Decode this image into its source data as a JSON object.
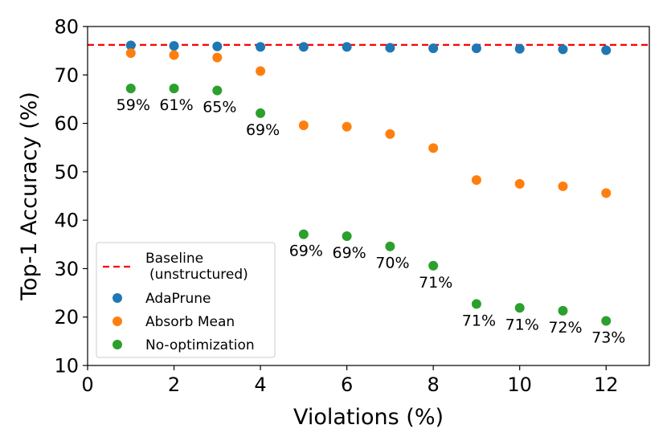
{
  "chart_data": {
    "type": "scatter",
    "xlabel": "Violations (%)",
    "ylabel": "Top-1 Accuracy (%)",
    "xlim": [
      0,
      13
    ],
    "ylim": [
      10,
      80
    ],
    "xticks": [
      0,
      2,
      4,
      6,
      8,
      10,
      12
    ],
    "yticks": [
      10,
      20,
      30,
      40,
      50,
      60,
      70,
      80
    ],
    "baseline": {
      "name_line1": "Baseline",
      "name_line2": "(unstructured)",
      "value": 76.2,
      "color": "#ff0000"
    },
    "legend_position": "lower-left",
    "series": [
      {
        "name": "AdaPrune",
        "color": "#1f77b4",
        "x": [
          1,
          2,
          3,
          4,
          5,
          6,
          7,
          8,
          9,
          10,
          11,
          12
        ],
        "y": [
          76.1,
          76.0,
          75.9,
          75.8,
          75.8,
          75.8,
          75.6,
          75.5,
          75.5,
          75.4,
          75.3,
          75.1
        ]
      },
      {
        "name": "Absorb Mean",
        "color": "#ff7f0e",
        "x": [
          1,
          2,
          3,
          4,
          5,
          6,
          7,
          8,
          9,
          10,
          11,
          12
        ],
        "y": [
          74.5,
          74.1,
          73.6,
          70.8,
          59.6,
          59.3,
          57.8,
          54.9,
          48.3,
          47.5,
          47.0,
          45.6
        ]
      },
      {
        "name": "No-optimization",
        "color": "#2ca02c",
        "x": [
          1,
          2,
          3,
          4,
          5,
          6,
          7,
          8,
          9,
          10,
          11,
          12
        ],
        "y": [
          67.2,
          67.2,
          66.8,
          62.1,
          37.1,
          36.7,
          34.6,
          30.6,
          22.7,
          21.9,
          21.3,
          19.2
        ],
        "labels": [
          "59%",
          "61%",
          "65%",
          "69%",
          "69%",
          "69%",
          "70%",
          "71%",
          "71%",
          "71%",
          "72%",
          "73%"
        ]
      }
    ]
  }
}
